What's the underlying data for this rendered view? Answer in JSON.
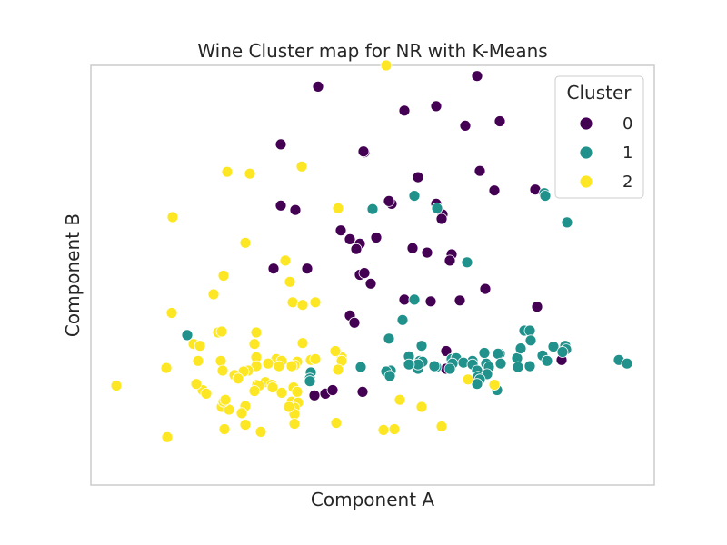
{
  "chart_data": {
    "type": "scatter",
    "title": "Wine Cluster map for NR with K-Means",
    "xlabel": "Component A",
    "ylabel": "Component B",
    "xlim": [
      0,
      620
    ],
    "ylim": [
      -33,
      440
    ],
    "grid": false,
    "x_ticks_shown": false,
    "y_ticks_shown": false,
    "legend": {
      "title": "Cluster",
      "position": "top-right"
    },
    "series": [
      {
        "name": "0",
        "color": "#440154",
        "points": [
          [
            250,
            416
          ],
          [
            425,
            428
          ],
          [
            345,
            389
          ],
          [
            301,
            342
          ],
          [
            412,
            372
          ],
          [
            450,
            377
          ],
          [
            209,
            351
          ],
          [
            380,
            394
          ],
          [
            360,
            314
          ],
          [
            300,
            343
          ],
          [
            360,
            314
          ],
          [
            428,
            321
          ],
          [
            444,
            299
          ],
          [
            489,
            300
          ],
          [
            209,
            282
          ],
          [
            225,
            277
          ],
          [
            331,
            284
          ],
          [
            328,
            287
          ],
          [
            380,
            284
          ],
          [
            387,
            272
          ],
          [
            386,
            267
          ],
          [
            275,
            254
          ],
          [
            285,
            244
          ],
          [
            296,
            239
          ],
          [
            292,
            233
          ],
          [
            314,
            246
          ],
          [
            354,
            234
          ],
          [
            370,
            229
          ],
          [
            397,
            227
          ],
          [
            395,
            220
          ],
          [
            201,
            211
          ],
          [
            238,
            211
          ],
          [
            296,
            204
          ],
          [
            301,
            206
          ],
          [
            308,
            194
          ],
          [
            345,
            176
          ],
          [
            374,
            174
          ],
          [
            406,
            175
          ],
          [
            434,
            188
          ],
          [
            285,
            158
          ],
          [
            290,
            150
          ],
          [
            491,
            168
          ],
          [
            391,
            118
          ],
          [
            518,
            108
          ],
          [
            246,
            68
          ],
          [
            258,
            70
          ],
          [
            266,
            74
          ],
          [
            299,
            72
          ],
          [
            391,
            98
          ]
        ]
      },
      {
        "name": "1",
        "color": "#21918c",
        "points": [
          [
            499,
            296
          ],
          [
            500,
            293
          ],
          [
            524,
            263
          ],
          [
            356,
            293
          ],
          [
            310,
            278
          ],
          [
            381,
            279
          ],
          [
            414,
            218
          ],
          [
            356,
            176
          ],
          [
            356,
            176
          ],
          [
            343,
            153
          ],
          [
            106,
            136
          ],
          [
            328,
            132
          ],
          [
            364,
            124
          ],
          [
            477,
            141
          ],
          [
            483,
            141
          ],
          [
            350,
            112
          ],
          [
            362,
            107
          ],
          [
            397,
            109
          ],
          [
            420,
            107
          ],
          [
            435,
            104
          ],
          [
            450,
            115
          ],
          [
            402,
            110
          ],
          [
            410,
            105
          ],
          [
            420,
            103
          ],
          [
            433,
            116
          ],
          [
            448,
            115
          ],
          [
            469,
            110
          ],
          [
            484,
            130
          ],
          [
            473,
            121
          ],
          [
            509,
            123
          ],
          [
            522,
            124
          ],
          [
            523,
            120
          ],
          [
            497,
            113
          ],
          [
            502,
            107
          ],
          [
            519,
            117
          ],
          [
            581,
            108
          ],
          [
            590,
            104
          ],
          [
            483,
            101
          ],
          [
            470,
            100
          ],
          [
            451,
            104
          ],
          [
            438,
            100
          ],
          [
            436,
            92
          ],
          [
            425,
            96
          ],
          [
            426,
            89
          ],
          [
            398,
            104
          ],
          [
            395,
            98
          ],
          [
            380,
            100
          ],
          [
            365,
            106
          ],
          [
            360,
            98
          ],
          [
            360,
            103
          ],
          [
            378,
            101
          ],
          [
            350,
            103
          ],
          [
            330,
            96
          ],
          [
            297,
            100
          ],
          [
            325,
            95
          ],
          [
            329,
            90
          ],
          [
            242,
            94
          ],
          [
            241,
            87
          ],
          [
            428,
            86
          ],
          [
            447,
            74
          ],
          [
            425,
            81
          ],
          [
            241,
            84
          ]
        ]
      },
      {
        "name": "2",
        "color": "#fde725",
        "points": [
          [
            325,
            440
          ],
          [
            150,
            320
          ],
          [
            175,
            318
          ],
          [
            232,
            326
          ],
          [
            272,
            279
          ],
          [
            90,
            269
          ],
          [
            170,
            240
          ],
          [
            146,
            203
          ],
          [
            214,
            220
          ],
          [
            135,
            182
          ],
          [
            219,
            196
          ],
          [
            222,
            173
          ],
          [
            233,
            170
          ],
          [
            247,
            173
          ],
          [
            89,
            161
          ],
          [
            140,
            139
          ],
          [
            144,
            140
          ],
          [
            113,
            126
          ],
          [
            120,
            124
          ],
          [
            182,
            139
          ],
          [
            180,
            126
          ],
          [
            233,
            127
          ],
          [
            276,
            111
          ],
          [
            276,
            107
          ],
          [
            182,
            111
          ],
          [
            204,
            109
          ],
          [
            210,
            107
          ],
          [
            225,
            102
          ],
          [
            227,
            106
          ],
          [
            242,
            108
          ],
          [
            247,
            109
          ],
          [
            224,
            102
          ],
          [
            221,
            101
          ],
          [
            207,
            101
          ],
          [
            195,
            104
          ],
          [
            182,
            101
          ],
          [
            173,
            96
          ],
          [
            168,
            95
          ],
          [
            158,
            91
          ],
          [
            162,
            87
          ],
          [
            143,
            107
          ],
          [
            118,
            107
          ],
          [
            145,
            96
          ],
          [
            192,
            83
          ],
          [
            199,
            80
          ],
          [
            183,
            80
          ],
          [
            185,
            79
          ],
          [
            223,
            77
          ],
          [
            227,
            72
          ],
          [
            210,
            71
          ],
          [
            200,
            77
          ],
          [
            221,
            61
          ],
          [
            228,
            60
          ],
          [
            224,
            54
          ],
          [
            224,
            47
          ],
          [
            218,
            55
          ],
          [
            180,
            73
          ],
          [
            170,
            56
          ],
          [
            166,
            48
          ],
          [
            144,
            55
          ],
          [
            152,
            52
          ],
          [
            123,
            74
          ],
          [
            146,
            61
          ],
          [
            148,
            63
          ],
          [
            127,
            70
          ],
          [
            116,
            81
          ],
          [
            83,
            99
          ],
          [
            334,
            30
          ],
          [
            322,
            29
          ],
          [
            386,
            33
          ],
          [
            415,
            86
          ],
          [
            444,
            80
          ],
          [
            147,
            30
          ],
          [
            187,
            27
          ],
          [
            170,
            35
          ],
          [
            340,
            63
          ],
          [
            364,
            55
          ],
          [
            270,
            37
          ],
          [
            224,
            36
          ],
          [
            28,
            79
          ],
          [
            84,
            21
          ],
          [
            272,
            97
          ],
          [
            269,
            118
          ]
        ]
      }
    ]
  }
}
